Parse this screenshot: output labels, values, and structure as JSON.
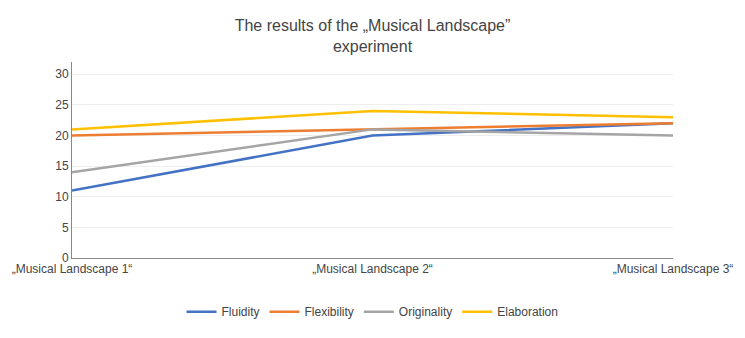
{
  "chart_data": {
    "type": "line",
    "title": "The results of the „Musical Landscape”\nexperiment",
    "categories": [
      "„Musical Landscape 1“",
      "„Musical Landscape 2“",
      "„Musical Landscape 3“"
    ],
    "series": [
      {
        "name": "Fluidity",
        "color": "#4472C4",
        "values": [
          11,
          20,
          22
        ]
      },
      {
        "name": "Flexibility",
        "color": "#ED7D31",
        "values": [
          20,
          21,
          22
        ]
      },
      {
        "name": "Originality",
        "color": "#A5A5A5",
        "values": [
          14,
          21,
          20
        ]
      },
      {
        "name": "Elaboration",
        "color": "#FFC000",
        "values": [
          21,
          24,
          23
        ]
      }
    ],
    "ylim": [
      0,
      32
    ],
    "yticks": [
      0,
      5,
      10,
      15,
      20,
      25,
      30
    ],
    "grid": true,
    "legend": "bottom"
  }
}
